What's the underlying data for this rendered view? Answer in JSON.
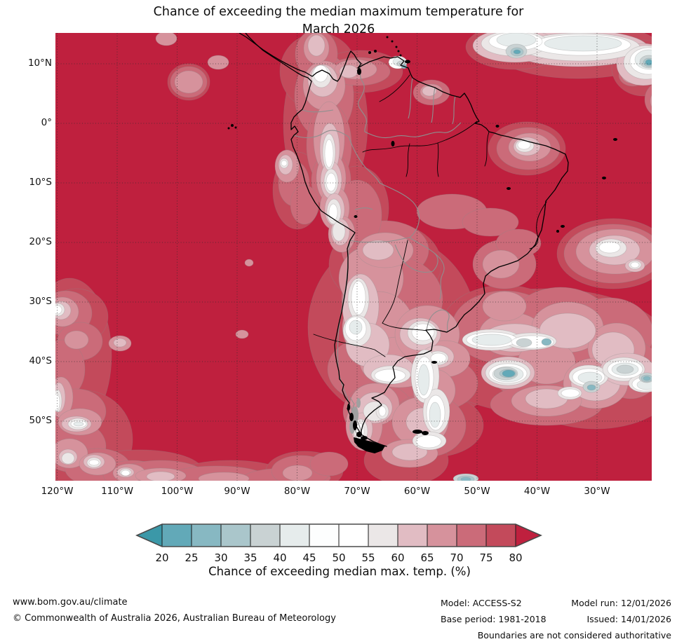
{
  "title": {
    "line1": "Chance of exceeding the median maximum temperature for",
    "line2": "March 2026"
  },
  "map": {
    "lat_ticks": [
      "10°N",
      "0°",
      "10°S",
      "20°S",
      "30°S",
      "40°S",
      "50°S"
    ],
    "lon_ticks": [
      "120°W",
      "110°W",
      "100°W",
      "90°W",
      "80°W",
      "70°W",
      "60°W",
      "50°W",
      "40°W",
      "30°W"
    ],
    "background_color": "#bf203e",
    "coastline_color": "#000000",
    "border_color": "#8f8f8f",
    "graticule_color": "#2b2b2b"
  },
  "colorbar": {
    "tick_labels": [
      "20",
      "25",
      "30",
      "35",
      "40",
      "45",
      "50",
      "55",
      "60",
      "65",
      "70",
      "75",
      "80"
    ],
    "label": "Chance of exceeding median max. temp. (%)",
    "under_arrow_color": "#3b98a8",
    "over_arrow_color": "#bf203e",
    "cells": [
      "#62a9b8",
      "#87b8c2",
      "#aac6cb",
      "#c9d2d3",
      "#e6ecec",
      "#fdfefe",
      "#ffffff",
      "#ebe7e7",
      "#e1bcc3",
      "#d6929c",
      "#cb6b79",
      "#c34a5b"
    ]
  },
  "footer": {
    "website": "www.bom.gov.au/climate",
    "copyright": "© Commonwealth of Australia 2026, Australian Bureau of Meteorology",
    "model_label": "Model: ACCESS-S2",
    "base_period_label": "Base period: 1981-2018",
    "model_run_label": "Model run: 12/01/2026",
    "issued_label": "Issued: 14/01/2026",
    "disclaimer": "Boundaries are not considered authoritative"
  },
  "chart_data": {
    "type": "heatmap",
    "title": "Chance of exceeding the median maximum temperature for March 2026",
    "variable": "Chance of exceeding median max. temp. (%)",
    "region": "South America and surrounding oceans",
    "x_axis": {
      "label": "longitude",
      "ticks": [
        "120°W",
        "110°W",
        "100°W",
        "90°W",
        "80°W",
        "70°W",
        "60°W",
        "50°W",
        "40°W",
        "30°W"
      ]
    },
    "y_axis": {
      "label": "latitude",
      "ticks": [
        "10°N",
        "0°",
        "10°S",
        "20°S",
        "30°S",
        "40°S",
        "50°S"
      ]
    },
    "grid": "dotted 10-degree graticule",
    "legend_position": "horizontal colorbar below map",
    "levels_percent": [
      20,
      25,
      30,
      35,
      40,
      45,
      50,
      55,
      60,
      65,
      70,
      75,
      80
    ],
    "level_colors": [
      "#3b98a8",
      "#62a9b8",
      "#87b8c2",
      "#aac6cb",
      "#c9d2d3",
      "#e6ecec",
      "#fdfefe",
      "#ffffff",
      "#ebe7e7",
      "#e1bcc3",
      "#d6929c",
      "#cb6b79",
      "#c34a5b",
      "#bf203e"
    ],
    "background_field": "greater than 80% chance (crimson) over most of the domain, land and ocean",
    "notable_lower_chance_regions": [
      {
        "area": "Colombian / western Venezuelan Andes band",
        "approx_chance_percent": "45-65"
      },
      {
        "area": "Trinidad and southern Caribbean patch",
        "approx_chance_percent": "35-50"
      },
      {
        "area": "Tropical North Atlantic along top edge",
        "approx_chance_percent": "30-50 with small teal pockets"
      },
      {
        "area": "Guyana coast and French Guiana / Amapá coast",
        "approx_chance_percent": "45-65"
      },
      {
        "area": "Altiplano and central Andes strip (Peru / Bolivia / Chile)",
        "approx_chance_percent": "45-65"
      },
      {
        "area": "Central Argentina, Uruguay and Río de la Plata",
        "approx_chance_percent": "50-70"
      },
      {
        "area": "Northeast Brazil coastal patch",
        "approx_chance_percent": "50-70"
      },
      {
        "area": "South Atlantic 35-55°S",
        "approx_chance_percent": "30-55 with teal pockets near 42°S"
      },
      {
        "area": "Southeast Pacific off southern Chile (lower-left)",
        "approx_chance_percent": "45-60"
      },
      {
        "area": "Southern Ocean band along bottom edge",
        "approx_chance_percent": "60-75"
      }
    ]
  }
}
